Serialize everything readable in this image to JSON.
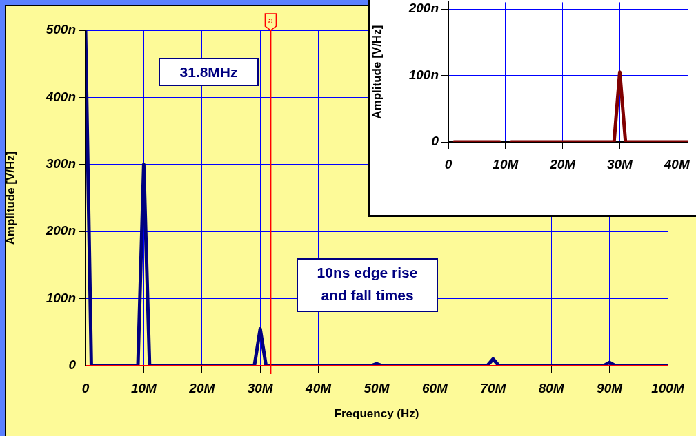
{
  "chart_data": [
    {
      "type": "line",
      "xlabel": "Frequency (Hz)",
      "ylabel": "Amplitude [V/Hz]",
      "series": [
        {
          "color": "#000080",
          "x": [
            0,
            1000000.0,
            9000000.0,
            10000000.0,
            11000000.0,
            29000000.0,
            30000000.0,
            31000000.0,
            49000000.0,
            50000000.0,
            51000000.0,
            69000000.0,
            70000000.0,
            71000000.0,
            89000000.0,
            90000000.0,
            91000000.0,
            100000000.0
          ],
          "values": [
            500,
            0,
            0,
            300,
            0,
            0,
            55,
            0,
            0,
            3,
            0,
            0,
            10,
            0,
            0,
            5,
            0,
            0
          ]
        }
      ],
      "xlim": [
        0,
        100000000.0
      ],
      "xticks": [
        0,
        {
          "value": 10000000.0,
          "label": "10M"
        },
        {
          "value": 20000000.0,
          "label": "20M"
        },
        {
          "value": 30000000.0,
          "label": "30M"
        },
        {
          "value": 40000000.0,
          "label": "40M"
        },
        {
          "value": 50000000.0,
          "label": "50M"
        },
        {
          "value": 60000000.0,
          "label": "60M"
        },
        {
          "value": 70000000.0,
          "label": "70M"
        },
        {
          "value": 80000000.0,
          "label": "80M"
        },
        {
          "value": 90000000.0,
          "label": "90M"
        },
        {
          "value": 100000000.0,
          "label": "100M"
        }
      ],
      "ylim": [
        0,
        500
      ],
      "yticks": [
        0,
        {
          "value": 100,
          "label": "100n"
        },
        {
          "value": 200,
          "label": "200n"
        },
        {
          "value": 300,
          "label": "300n"
        },
        {
          "value": 400,
          "label": "400n"
        },
        {
          "value": 500,
          "label": "500n"
        }
      ],
      "ref_lines": [
        {
          "axis": "x",
          "value": 31800000.0,
          "label": "a",
          "color": "#ff0000"
        },
        {
          "axis": "y",
          "value": 0,
          "color": "#ff0000"
        }
      ],
      "annotations": [
        "31.8MHz",
        "10ns edge rise and fall times"
      ],
      "grid": true,
      "legend": false,
      "marker": "none",
      "line_style": "solid"
    },
    {
      "type": "line",
      "ylabel": "Amplitude [V/Hz]",
      "series": [
        {
          "color": "#800000",
          "x": [
            1000000.0,
            9000000.0,
            10000000.0,
            11000000.0,
            29000000.0,
            30000000.0,
            31000000.0,
            42000000.0
          ],
          "values": [
            0,
            0,
            null,
            0,
            0,
            105,
            0,
            0
          ]
        }
      ],
      "xlim": [
        0,
        42000000.0
      ],
      "xticks": [
        0,
        {
          "value": 10000000.0,
          "label": "10M"
        },
        {
          "value": 20000000.0,
          "label": "20M"
        },
        {
          "value": 30000000.0,
          "label": "30M"
        },
        {
          "value": 40000000.0,
          "label": "40M"
        }
      ],
      "ylim": [
        0,
        210
      ],
      "yticks": [
        0,
        {
          "value": 100,
          "label": "100n"
        },
        {
          "value": 200,
          "label": "200n"
        }
      ],
      "grid": true,
      "legend": false,
      "marker": "none",
      "line_style": "solid"
    }
  ]
}
